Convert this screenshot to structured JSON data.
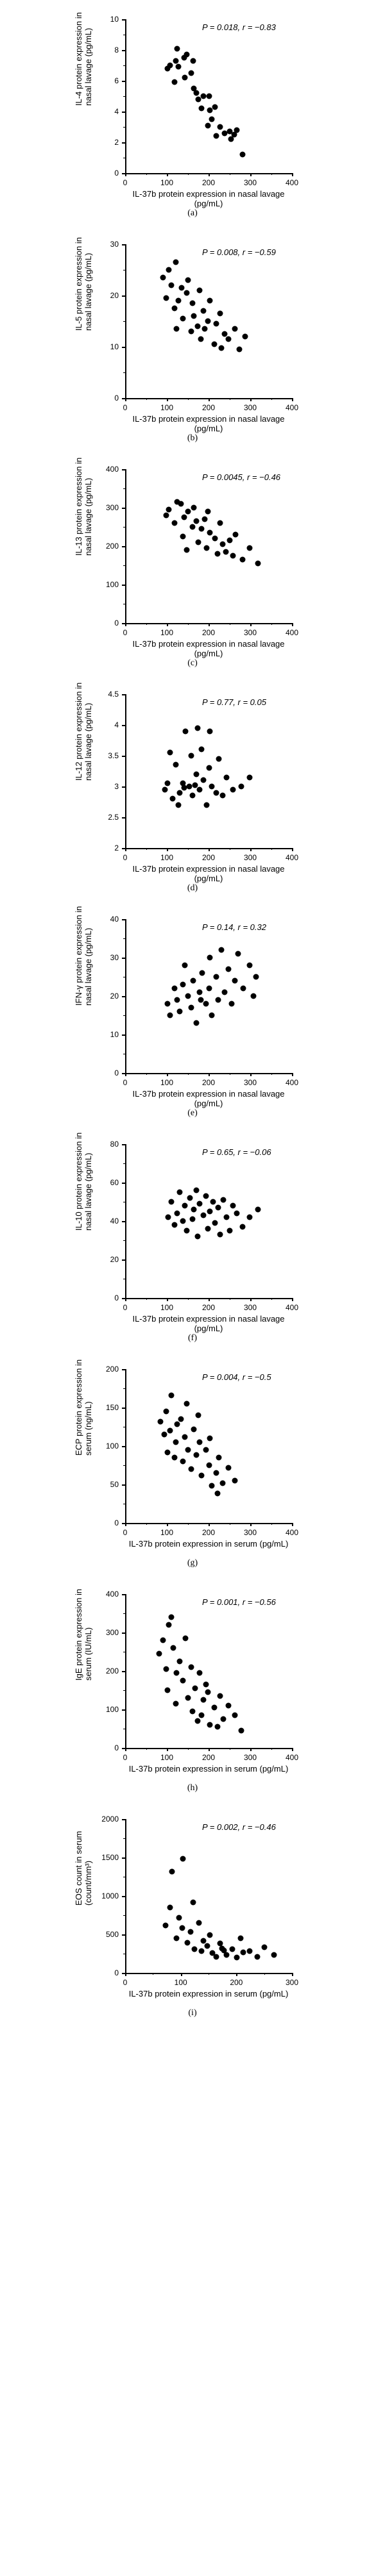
{
  "charts": [
    {
      "id": "a",
      "type": "scatter",
      "xlabel": "IL-37b protein expression in nasal lavage (pg/mL)",
      "ylabel": "IL-4 protein expression in\nnasal lavage (pg/mL)",
      "sublabel": "(a)",
      "stats": "P = 0.018,  r = −0.83",
      "xlim": [
        0,
        400
      ],
      "ylim": [
        0,
        10
      ],
      "xticks": [
        0,
        100,
        200,
        300,
        400
      ],
      "yticks": [
        0,
        2,
        4,
        6,
        8,
        10
      ],
      "xminor": [
        50,
        150,
        250,
        350
      ],
      "yminor": [
        1,
        3,
        5,
        7,
        9
      ],
      "points": [
        [
          98,
          6.8
        ],
        [
          105,
          7.0
        ],
        [
          118,
          7.3
        ],
        [
          125,
          6.9
        ],
        [
          115,
          5.9
        ],
        [
          122,
          8.1
        ],
        [
          138,
          7.5
        ],
        [
          145,
          7.7
        ],
        [
          140,
          6.2
        ],
        [
          155,
          6.5
        ],
        [
          160,
          7.3
        ],
        [
          168,
          5.2
        ],
        [
          172,
          4.8
        ],
        [
          162,
          5.5
        ],
        [
          180,
          4.2
        ],
        [
          185,
          5.0
        ],
        [
          195,
          3.1
        ],
        [
          198,
          5.0
        ],
        [
          200,
          4.1
        ],
        [
          205,
          3.5
        ],
        [
          215,
          2.4
        ],
        [
          212,
          4.3
        ],
        [
          225,
          3.0
        ],
        [
          235,
          2.6
        ],
        [
          248,
          2.7
        ],
        [
          250,
          2.2
        ],
        [
          258,
          2.5
        ],
        [
          265,
          2.8
        ],
        [
          278,
          1.2
        ]
      ]
    },
    {
      "id": "b",
      "type": "scatter",
      "xlabel": "IL-37b protein expression in nasal lavage (pg/mL)",
      "ylabel": "IL-5 protein expression in\nnasal lavage (pg/mL)",
      "sublabel": "(b)",
      "stats": "P = 0.008,  r = −0.59",
      "xlim": [
        0,
        400
      ],
      "ylim": [
        0,
        30
      ],
      "xticks": [
        0,
        100,
        200,
        300,
        400
      ],
      "yticks": [
        0,
        10,
        20,
        30
      ],
      "xminor": [
        50,
        150,
        250,
        350
      ],
      "yminor": [
        5,
        15,
        25
      ],
      "points": [
        [
          88,
          23.5
        ],
        [
          95,
          19.5
        ],
        [
          102,
          25.0
        ],
        [
          108,
          22.0
        ],
        [
          118,
          26.5
        ],
        [
          115,
          17.5
        ],
        [
          125,
          19.0
        ],
        [
          120,
          13.5
        ],
        [
          135,
          15.5
        ],
        [
          132,
          21.5
        ],
        [
          145,
          20.5
        ],
        [
          148,
          23.0
        ],
        [
          155,
          13.0
        ],
        [
          158,
          18.5
        ],
        [
          162,
          16.0
        ],
        [
          170,
          14.0
        ],
        [
          175,
          21.0
        ],
        [
          178,
          11.5
        ],
        [
          185,
          17.0
        ],
        [
          188,
          13.5
        ],
        [
          195,
          15.0
        ],
        [
          200,
          19.0
        ],
        [
          210,
          10.5
        ],
        [
          215,
          14.5
        ],
        [
          225,
          16.5
        ],
        [
          228,
          9.8
        ],
        [
          235,
          12.5
        ],
        [
          245,
          11.5
        ],
        [
          260,
          13.5
        ],
        [
          270,
          9.5
        ],
        [
          285,
          12.0
        ]
      ]
    },
    {
      "id": "c",
      "type": "scatter",
      "xlabel": "IL-37b protein expression in nasal lavage (pg/mL)",
      "ylabel": "IL-13 protein expression in\nnasal lavage (pg/mL)",
      "sublabel": "(c)",
      "stats": "P = 0.0045,  r = −0.46",
      "xlim": [
        0,
        400
      ],
      "ylim": [
        0,
        400
      ],
      "xticks": [
        0,
        100,
        200,
        300,
        400
      ],
      "yticks": [
        0,
        100,
        200,
        300,
        400
      ],
      "xminor": [
        50,
        150,
        250,
        350
      ],
      "yminor": [
        50,
        150,
        250,
        350
      ],
      "points": [
        [
          95,
          280
        ],
        [
          102,
          295
        ],
        [
          115,
          260
        ],
        [
          122,
          315
        ],
        [
          130,
          310
        ],
        [
          135,
          225
        ],
        [
          138,
          275
        ],
        [
          148,
          290
        ],
        [
          145,
          190
        ],
        [
          158,
          250
        ],
        [
          162,
          300
        ],
        [
          168,
          265
        ],
        [
          172,
          210
        ],
        [
          180,
          245
        ],
        [
          188,
          270
        ],
        [
          192,
          195
        ],
        [
          200,
          235
        ],
        [
          195,
          290
        ],
        [
          212,
          220
        ],
        [
          218,
          180
        ],
        [
          225,
          260
        ],
        [
          230,
          205
        ],
        [
          238,
          185
        ],
        [
          248,
          215
        ],
        [
          255,
          175
        ],
        [
          262,
          230
        ],
        [
          278,
          165
        ],
        [
          295,
          195
        ],
        [
          315,
          155
        ]
      ]
    },
    {
      "id": "d",
      "type": "scatter",
      "xlabel": "IL-37b protein expression in nasal lavage (pg/mL)",
      "ylabel": "IL-12 protein expression in\nnasal lavage (pg/mL)",
      "sublabel": "(d)",
      "stats": "P = 0.77,  r = 0.05",
      "xlim": [
        0,
        400
      ],
      "ylim": [
        2.0,
        4.5
      ],
      "xticks": [
        0,
        100,
        200,
        300,
        400
      ],
      "yticks": [
        2.0,
        2.5,
        3.0,
        3.5,
        4.0,
        4.5
      ],
      "xminor": [
        50,
        150,
        250,
        350
      ],
      "yminor": [],
      "points": [
        [
          92,
          2.95
        ],
        [
          98,
          3.05
        ],
        [
          105,
          3.55
        ],
        [
          110,
          2.8
        ],
        [
          118,
          3.35
        ],
        [
          125,
          2.7
        ],
        [
          128,
          2.9
        ],
        [
          135,
          3.05
        ],
        [
          142,
          3.9
        ],
        [
          138,
          2.98
        ],
        [
          150,
          3.0
        ],
        [
          155,
          3.5
        ],
        [
          158,
          2.85
        ],
        [
          165,
          3.02
        ],
        [
          168,
          3.2
        ],
        [
          175,
          2.95
        ],
        [
          180,
          3.6
        ],
        [
          170,
          3.95
        ],
        [
          185,
          3.1
        ],
        [
          192,
          2.7
        ],
        [
          198,
          3.3
        ],
        [
          205,
          3.0
        ],
        [
          200,
          3.9
        ],
        [
          215,
          2.9
        ],
        [
          222,
          3.45
        ],
        [
          230,
          2.85
        ],
        [
          240,
          3.15
        ],
        [
          255,
          2.95
        ],
        [
          275,
          3.0
        ],
        [
          295,
          3.15
        ]
      ]
    },
    {
      "id": "e",
      "type": "scatter",
      "xlabel": "IL-37b protein expression in nasal lavage (pg/mL)",
      "ylabel": "IFN-γ protein expression in\nnasal lavage (pg/mL)",
      "sublabel": "(e)",
      "stats": "P = 0.14,  r = 0.32",
      "xlim": [
        0,
        400
      ],
      "ylim": [
        0,
        40
      ],
      "xticks": [
        0,
        100,
        200,
        300,
        400
      ],
      "yticks": [
        0,
        10,
        20,
        30,
        40
      ],
      "xminor": [
        50,
        150,
        250,
        350
      ],
      "yminor": [
        5,
        15,
        25,
        35
      ],
      "points": [
        [
          98,
          18
        ],
        [
          105,
          15
        ],
        [
          115,
          22
        ],
        [
          122,
          19
        ],
        [
          128,
          16
        ],
        [
          135,
          23
        ],
        [
          140,
          28
        ],
        [
          148,
          20
        ],
        [
          155,
          17
        ],
        [
          160,
          24
        ],
        [
          168,
          13
        ],
        [
          175,
          21
        ],
        [
          182,
          26
        ],
        [
          178,
          19
        ],
        [
          190,
          18
        ],
        [
          198,
          22
        ],
        [
          205,
          15
        ],
        [
          200,
          30
        ],
        [
          215,
          25
        ],
        [
          220,
          19
        ],
        [
          228,
          32
        ],
        [
          235,
          21
        ],
        [
          245,
          27
        ],
        [
          252,
          18
        ],
        [
          260,
          24
        ],
        [
          268,
          31
        ],
        [
          280,
          22
        ],
        [
          295,
          28
        ],
        [
          310,
          25
        ],
        [
          305,
          20
        ]
      ]
    },
    {
      "id": "f",
      "type": "scatter",
      "xlabel": "IL-37b protein expression in nasal lavage (pg/mL)",
      "ylabel": "IL-10 protein expression in\nnasal lavage (pg/mL)",
      "sublabel": "(f)",
      "stats": "P = 0.65,  r = −0.06",
      "xlim": [
        0,
        400
      ],
      "ylim": [
        0,
        80
      ],
      "xticks": [
        0,
        100,
        200,
        300,
        400
      ],
      "yticks": [
        0,
        20,
        40,
        60,
        80
      ],
      "xminor": [
        50,
        150,
        250,
        350
      ],
      "yminor": [
        10,
        30,
        50,
        70
      ],
      "points": [
        [
          100,
          42
        ],
        [
          108,
          50
        ],
        [
          115,
          38
        ],
        [
          122,
          44
        ],
        [
          128,
          55
        ],
        [
          135,
          40
        ],
        [
          140,
          48
        ],
        [
          145,
          35
        ],
        [
          152,
          52
        ],
        [
          158,
          41
        ],
        [
          162,
          46
        ],
        [
          170,
          32
        ],
        [
          175,
          49
        ],
        [
          168,
          56
        ],
        [
          185,
          43
        ],
        [
          190,
          53
        ],
        [
          195,
          36
        ],
        [
          200,
          45
        ],
        [
          208,
          50
        ],
        [
          212,
          39
        ],
        [
          220,
          47
        ],
        [
          225,
          33
        ],
        [
          232,
          51
        ],
        [
          240,
          42
        ],
        [
          248,
          35
        ],
        [
          255,
          48
        ],
        [
          265,
          44
        ],
        [
          278,
          37
        ],
        [
          295,
          42
        ],
        [
          315,
          46
        ]
      ]
    },
    {
      "id": "g",
      "type": "scatter",
      "xlabel": "IL-37b protein expression in serum (pg/mL)",
      "ylabel": "ECP protein expression in\nserum (ng/mL)",
      "sublabel": "(g)",
      "stats": "P = 0.004,  r = −0.5",
      "xlim": [
        0,
        400
      ],
      "ylim": [
        0,
        200
      ],
      "xticks": [
        0,
        100,
        200,
        300,
        400
      ],
      "yticks": [
        0,
        50,
        100,
        150,
        200
      ],
      "xminor": [
        50,
        150,
        250,
        350
      ],
      "yminor": [
        25,
        75,
        125,
        175
      ],
      "points": [
        [
          82,
          132
        ],
        [
          90,
          115
        ],
        [
          95,
          145
        ],
        [
          98,
          92
        ],
        [
          105,
          120
        ],
        [
          108,
          166
        ],
        [
          115,
          85
        ],
        [
          122,
          128
        ],
        [
          118,
          105
        ],
        [
          130,
          135
        ],
        [
          135,
          80
        ],
        [
          140,
          112
        ],
        [
          148,
          95
        ],
        [
          145,
          155
        ],
        [
          155,
          70
        ],
        [
          162,
          122
        ],
        [
          168,
          88
        ],
        [
          175,
          105
        ],
        [
          180,
          62
        ],
        [
          172,
          140
        ],
        [
          190,
          95
        ],
        [
          198,
          75
        ],
        [
          205,
          48
        ],
        [
          200,
          110
        ],
        [
          215,
          65
        ],
        [
          222,
          85
        ],
        [
          230,
          52
        ],
        [
          218,
          38
        ],
        [
          245,
          72
        ],
        [
          260,
          55
        ]
      ]
    },
    {
      "id": "h",
      "type": "scatter",
      "xlabel": "IL-37b protein expression in serum (pg/mL)",
      "ylabel": "IgE protein expression in\nserum (IU/mL)",
      "sublabel": "(h)",
      "stats": "P = 0.001,  r = −0.56",
      "xlim": [
        0,
        400
      ],
      "ylim": [
        0,
        400
      ],
      "xticks": [
        0,
        100,
        200,
        300,
        400
      ],
      "yticks": [
        0,
        100,
        200,
        300,
        400
      ],
      "xminor": [
        50,
        150,
        250,
        350
      ],
      "yminor": [
        50,
        150,
        250,
        350
      ],
      "points": [
        [
          78,
          245
        ],
        [
          88,
          280
        ],
        [
          95,
          205
        ],
        [
          102,
          320
        ],
        [
          98,
          150
        ],
        [
          112,
          260
        ],
        [
          108,
          340
        ],
        [
          120,
          195
        ],
        [
          128,
          225
        ],
        [
          118,
          115
        ],
        [
          135,
          175
        ],
        [
          142,
          285
        ],
        [
          148,
          130
        ],
        [
          155,
          210
        ],
        [
          158,
          95
        ],
        [
          165,
          155
        ],
        [
          170,
          70
        ],
        [
          175,
          195
        ],
        [
          185,
          125
        ],
        [
          180,
          85
        ],
        [
          195,
          145
        ],
        [
          200,
          60
        ],
        [
          190,
          165
        ],
        [
          210,
          105
        ],
        [
          218,
          55
        ],
        [
          225,
          135
        ],
        [
          232,
          75
        ],
        [
          245,
          110
        ],
        [
          260,
          85
        ],
        [
          275,
          45
        ]
      ]
    },
    {
      "id": "i",
      "type": "scatter",
      "xlabel": "IL-37b protein expression in serum (pg/mL)",
      "ylabel": "EOS count in serum\n(count/mm³)",
      "sublabel": "(i)",
      "stats": "P = 0.002,  r = −0.46",
      "xlim": [
        0,
        300
      ],
      "ylim": [
        0,
        2000
      ],
      "xticks": [
        0,
        100,
        200,
        300
      ],
      "yticks": [
        0,
        500,
        1000,
        1500,
        2000
      ],
      "xminor": [
        50,
        150,
        250
      ],
      "yminor": [
        250,
        750,
        1250,
        1750
      ],
      "points": [
        [
          70,
          620
        ],
        [
          78,
          850
        ],
        [
          82,
          1320
        ],
        [
          90,
          450
        ],
        [
          95,
          720
        ],
        [
          100,
          580
        ],
        [
          102,
          1480
        ],
        [
          110,
          390
        ],
        [
          115,
          530
        ],
        [
          120,
          920
        ],
        [
          122,
          310
        ],
        [
          130,
          650
        ],
        [
          138,
          420
        ],
        [
          135,
          280
        ],
        [
          145,
          350
        ],
        [
          150,
          490
        ],
        [
          155,
          260
        ],
        [
          162,
          210
        ],
        [
          168,
          380
        ],
        [
          175,
          290
        ],
        [
          180,
          230
        ],
        [
          172,
          320
        ],
        [
          190,
          310
        ],
        [
          198,
          200
        ],
        [
          205,
          450
        ],
        [
          210,
          270
        ],
        [
          222,
          280
        ],
        [
          235,
          210
        ],
        [
          248,
          330
        ],
        [
          265,
          230
        ]
      ]
    }
  ]
}
